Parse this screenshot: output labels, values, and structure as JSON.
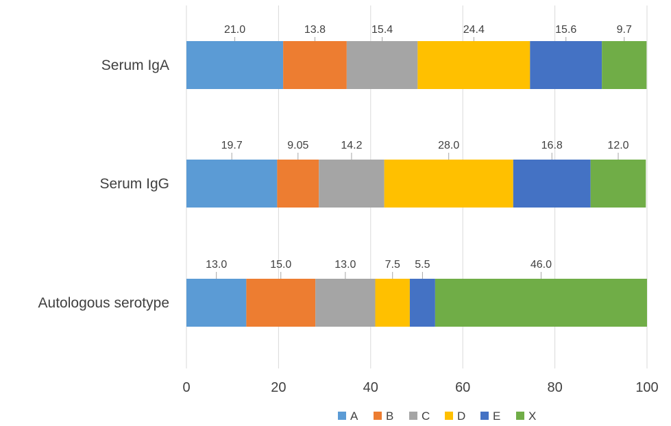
{
  "chart_data": {
    "type": "bar",
    "orientation": "horizontal",
    "stacked": true,
    "categories": [
      "Serum IgA",
      "Serum IgG",
      "Autologous serotype"
    ],
    "series": [
      {
        "name": "A",
        "color": "#5b9bd5",
        "values": [
          21.0,
          19.7,
          13.0
        ],
        "labels": [
          "21.0",
          "19.7",
          "13.0"
        ]
      },
      {
        "name": "B",
        "color": "#ed7d31",
        "values": [
          13.8,
          9.05,
          15.0
        ],
        "labels": [
          "13.8",
          "9.05",
          "15.0"
        ]
      },
      {
        "name": "C",
        "color": "#a5a5a5",
        "values": [
          15.4,
          14.2,
          13.0
        ],
        "labels": [
          "15.4",
          "14.2",
          "13.0"
        ]
      },
      {
        "name": "D",
        "color": "#ffc000",
        "values": [
          24.4,
          28.0,
          7.5
        ],
        "labels": [
          "24.4",
          "28.0",
          "7.5"
        ]
      },
      {
        "name": "E",
        "color": "#4472c4",
        "values": [
          15.6,
          16.8,
          5.5
        ],
        "labels": [
          "15.6",
          "16.8",
          "5.5"
        ]
      },
      {
        "name": "X",
        "color": "#70ad47",
        "values": [
          9.7,
          12.0,
          46.0
        ],
        "labels": [
          "9.7",
          "12.0",
          "46.0"
        ]
      }
    ],
    "xlim": [
      0,
      100
    ],
    "xticks": [
      0,
      20,
      40,
      60,
      80,
      100
    ],
    "grid": "vertical",
    "legend": "bottom",
    "title": "",
    "xlabel": "",
    "ylabel": ""
  }
}
